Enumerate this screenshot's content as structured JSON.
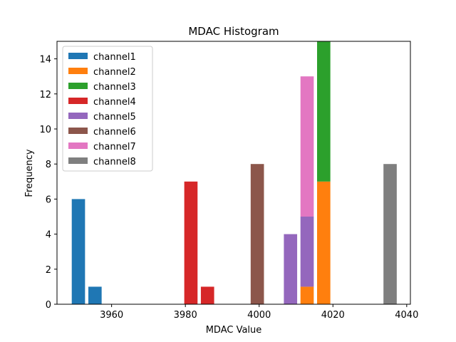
{
  "chart_data": {
    "type": "bar",
    "title": "MDAC Histogram",
    "xlabel": "MDAC Value",
    "ylabel": "Frequency",
    "xlim": [
      3945.2,
      4041
    ],
    "ylim": [
      0,
      15
    ],
    "xticks": [
      3960,
      3980,
      4000,
      4020,
      4040
    ],
    "yticks": [
      0,
      2,
      4,
      6,
      8,
      10,
      12,
      14
    ],
    "legend_position": "top-left",
    "stacked": true,
    "bar_width": 3.6,
    "series": [
      {
        "name": "channel1",
        "color": "#1f77b4",
        "bars": [
          {
            "x": 3951,
            "value": 6
          },
          {
            "x": 3955.5,
            "value": 1
          }
        ]
      },
      {
        "name": "channel2",
        "color": "#ff7f0e",
        "bars": [
          {
            "x": 4013,
            "value": 1
          },
          {
            "x": 4017.5,
            "value": 7
          }
        ]
      },
      {
        "name": "channel3",
        "color": "#2ca02c",
        "bars": [
          {
            "x": 4017.5,
            "value": 8
          }
        ]
      },
      {
        "name": "channel4",
        "color": "#d62728",
        "bars": [
          {
            "x": 3981.5,
            "value": 7
          },
          {
            "x": 3986,
            "value": 1
          }
        ]
      },
      {
        "name": "channel5",
        "color": "#9467bd",
        "bars": [
          {
            "x": 4008.5,
            "value": 4
          },
          {
            "x": 4013,
            "value": 4
          }
        ]
      },
      {
        "name": "channel6",
        "color": "#8c564b",
        "bars": [
          {
            "x": 3999.5,
            "value": 8
          }
        ]
      },
      {
        "name": "channel7",
        "color": "#e377c2",
        "bars": [
          {
            "x": 4013,
            "value": 8
          }
        ]
      },
      {
        "name": "channel8",
        "color": "#7f7f7f",
        "bars": [
          {
            "x": 4035.5,
            "value": 8
          }
        ]
      }
    ]
  }
}
